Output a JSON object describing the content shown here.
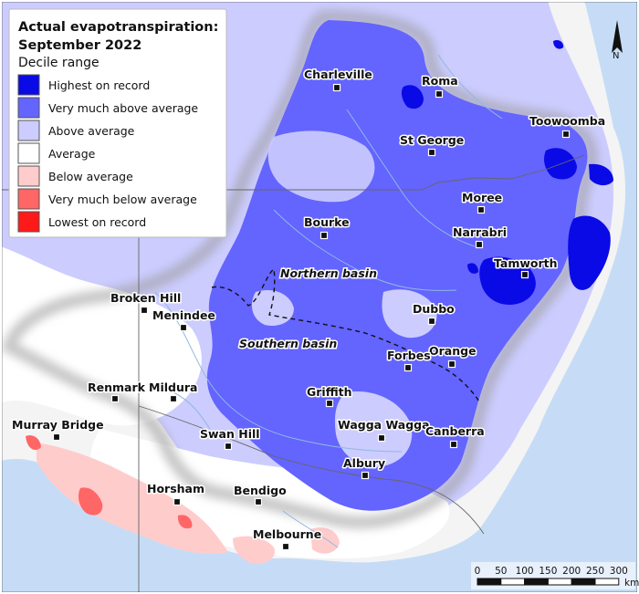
{
  "legend": {
    "title_line1": "Actual evapotranspiration:",
    "title_line2": "September 2022",
    "subtitle": "Decile range",
    "items": [
      {
        "label": "Highest on record",
        "color": "#0a0ae6"
      },
      {
        "label": "Very much above average",
        "color": "#6464ff"
      },
      {
        "label": "Above average",
        "color": "#ccccff"
      },
      {
        "label": "Average",
        "color": "#ffffff"
      },
      {
        "label": "Below average",
        "color": "#ffcccc"
      },
      {
        "label": "Very much below average",
        "color": "#ff6666"
      },
      {
        "label": "Lowest on record",
        "color": "#ff1a1a"
      }
    ]
  },
  "towns": [
    {
      "name": "Charleville"
    },
    {
      "name": "Roma"
    },
    {
      "name": "Toowoomba"
    },
    {
      "name": "St George"
    },
    {
      "name": "Moree"
    },
    {
      "name": "Bourke"
    },
    {
      "name": "Narrabri"
    },
    {
      "name": "Tamworth"
    },
    {
      "name": "Broken Hill"
    },
    {
      "name": "Menindee"
    },
    {
      "name": "Dubbo"
    },
    {
      "name": "Orange"
    },
    {
      "name": "Forbes"
    },
    {
      "name": "Renmark"
    },
    {
      "name": "Mildura"
    },
    {
      "name": "Griffith"
    },
    {
      "name": "Murray Bridge"
    },
    {
      "name": "Swan Hill"
    },
    {
      "name": "Wagga Wagga"
    },
    {
      "name": "Canberra"
    },
    {
      "name": "Albury"
    },
    {
      "name": "Horsham"
    },
    {
      "name": "Bendigo"
    },
    {
      "name": "Melbourne"
    }
  ],
  "basins": {
    "northern": "Northern basin",
    "southern": "Southern basin"
  },
  "scale_bar": {
    "ticks": [
      "0",
      "50",
      "100",
      "150",
      "200",
      "250",
      "300"
    ],
    "unit": "km"
  },
  "north_arrow": {
    "label": "N"
  },
  "colors": {
    "ocean": "#c6dcf6",
    "land_outside": "#f2f2f2",
    "boundary": "#7a7a7a",
    "river": "#8fb8e0"
  }
}
